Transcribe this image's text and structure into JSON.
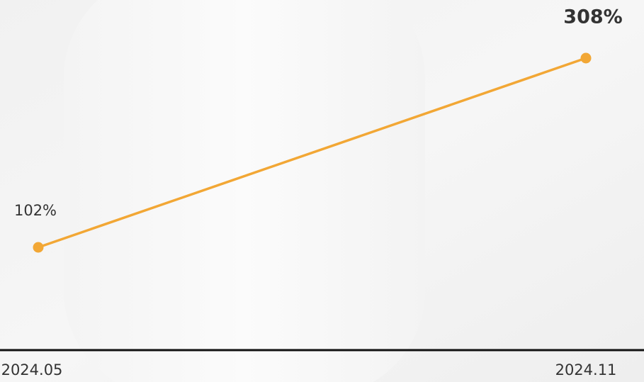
{
  "chart_data": {
    "type": "line",
    "categories": [
      "2024.05",
      "2024.11"
    ],
    "values": [
      102,
      308
    ],
    "value_labels": [
      "102%",
      "308%"
    ],
    "color": "#f2a735"
  }
}
